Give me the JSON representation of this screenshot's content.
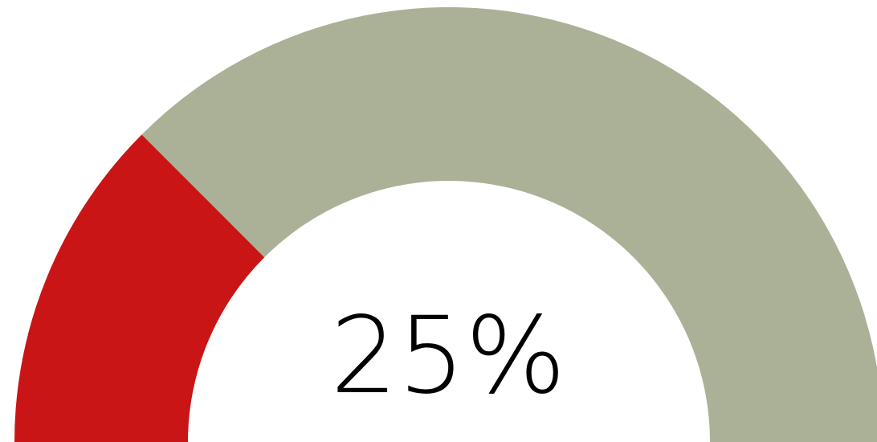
{
  "chart_data": {
    "type": "gauge",
    "value": 25,
    "min": 0,
    "max": 100,
    "value_label": "25%",
    "colors": {
      "value": "#c91515",
      "track": "#abb196"
    }
  }
}
